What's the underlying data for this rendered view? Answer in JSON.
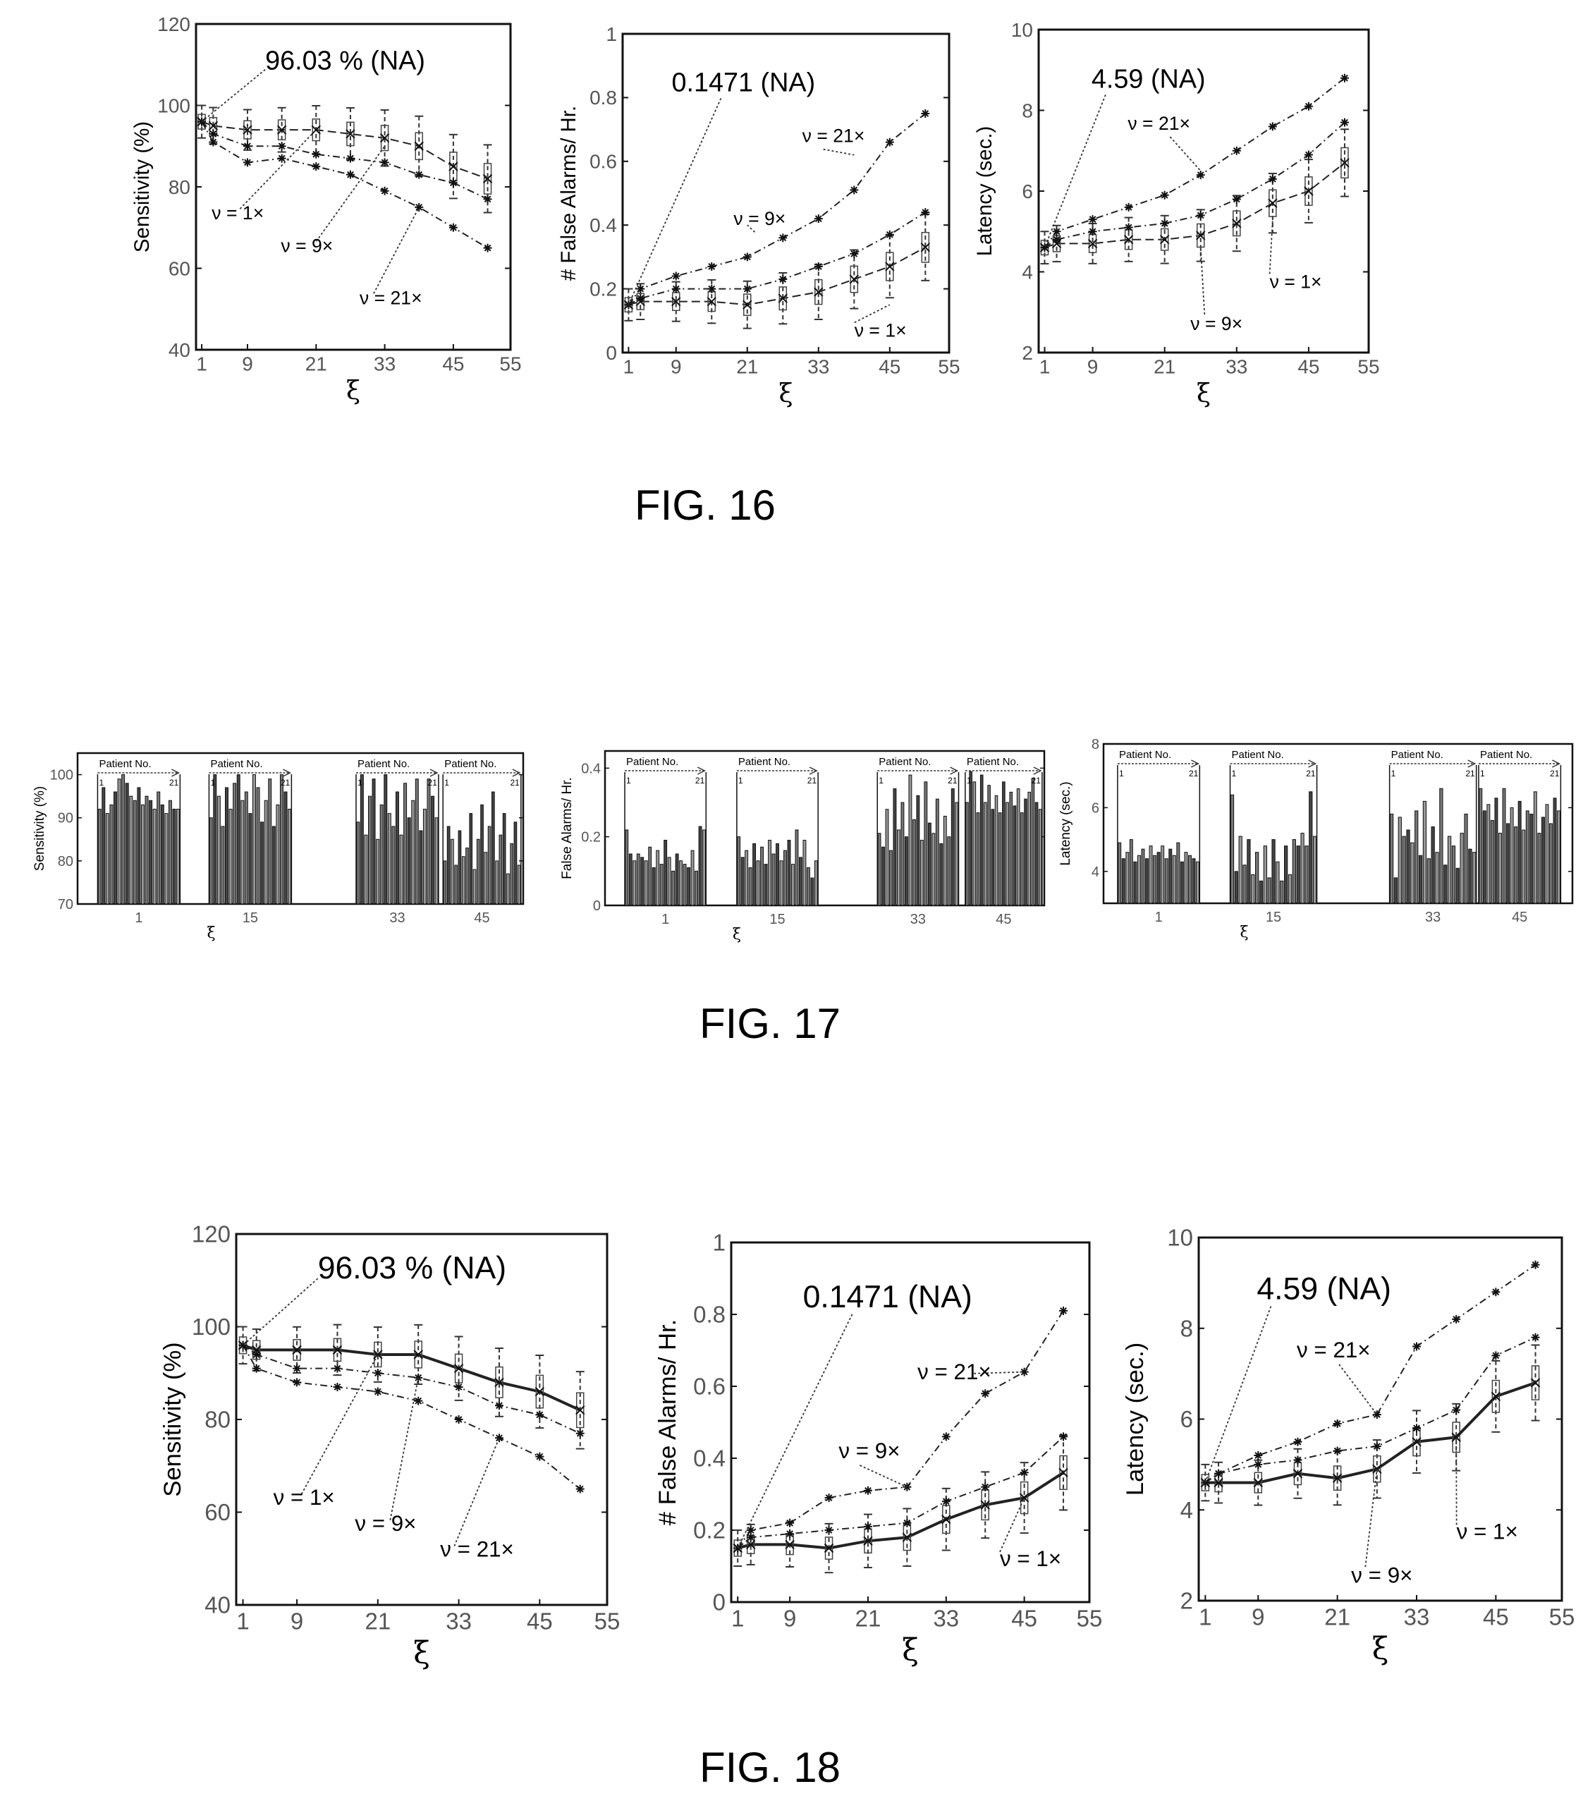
{
  "figures": [
    {
      "label": "FIG. 16"
    },
    {
      "label": "FIG. 17"
    },
    {
      "label": "FIG. 18"
    }
  ],
  "chart_data": [
    {
      "id": "fig16-sensitivity",
      "figure": "FIG. 16",
      "type": "line",
      "title": "",
      "xlabel": "ξ",
      "ylabel": "Sensitivity (%)",
      "xlim": [
        0,
        55
      ],
      "ylim": [
        40,
        120
      ],
      "xticks": [
        1,
        9,
        21,
        33,
        45,
        55
      ],
      "yticks": [
        40,
        60,
        80,
        100,
        120
      ],
      "x": [
        1,
        3,
        9,
        15,
        21,
        27,
        33,
        39,
        45,
        51
      ],
      "series": [
        {
          "values": [
            96,
            95,
            94,
            94,
            94,
            93,
            92,
            90,
            85,
            82
          ]
        },
        {
          "values": [
            96,
            93,
            90,
            90,
            88,
            87,
            86,
            83,
            81,
            77
          ]
        },
        {
          "values": [
            96,
            91,
            86,
            87,
            85,
            83,
            79,
            75,
            70,
            65
          ]
        }
      ],
      "annotations": [
        {
          "text": "96.03 % (NA)",
          "x": 1,
          "y": 96
        },
        {
          "text": "ν = 1×",
          "x": 21,
          "y": 94
        },
        {
          "text": "ν = 9×",
          "x": 33,
          "y": 90
        },
        {
          "text": "ν = 21×",
          "x": 39,
          "y": 75
        }
      ]
    },
    {
      "id": "fig16-false-alarms",
      "figure": "FIG. 16",
      "type": "line",
      "title": "",
      "xlabel": "ξ",
      "ylabel": "# False Alarms/ Hr.",
      "xlim": [
        0,
        55
      ],
      "ylim": [
        0,
        1
      ],
      "xticks": [
        1,
        9,
        21,
        33,
        45,
        55
      ],
      "yticks": [
        0,
        0.2,
        0.4,
        0.6,
        0.8,
        1
      ],
      "x": [
        1,
        3,
        9,
        15,
        21,
        27,
        33,
        39,
        45,
        51
      ],
      "series": [
        {
          "values": [
            0.15,
            0.16,
            0.16,
            0.16,
            0.15,
            0.17,
            0.19,
            0.23,
            0.27,
            0.33
          ]
        },
        {
          "values": [
            0.15,
            0.17,
            0.2,
            0.2,
            0.2,
            0.23,
            0.27,
            0.31,
            0.37,
            0.44
          ]
        },
        {
          "values": [
            0.15,
            0.2,
            0.24,
            0.27,
            0.3,
            0.36,
            0.42,
            0.51,
            0.66,
            0.75
          ]
        }
      ],
      "annotations": [
        {
          "text": "0.1471 (NA)",
          "x": 1,
          "y": 0.15
        },
        {
          "text": "ν = 21×",
          "x": 39,
          "y": 0.62
        },
        {
          "text": "ν = 9×",
          "x": 21,
          "y": 0.4
        },
        {
          "text": "ν = 1×",
          "x": 45,
          "y": 0.15
        }
      ]
    },
    {
      "id": "fig16-latency",
      "figure": "FIG. 16",
      "type": "line",
      "title": "",
      "xlabel": "ξ",
      "ylabel": "Latency (sec.)",
      "xlim": [
        0,
        55
      ],
      "ylim": [
        2,
        10
      ],
      "xticks": [
        1,
        9,
        21,
        33,
        45,
        55
      ],
      "yticks": [
        2,
        4,
        6,
        8,
        10
      ],
      "x": [
        1,
        3,
        9,
        15,
        21,
        27,
        33,
        39,
        45,
        51
      ],
      "series": [
        {
          "values": [
            4.6,
            4.7,
            4.7,
            4.8,
            4.8,
            4.9,
            5.2,
            5.7,
            6,
            6.7
          ]
        },
        {
          "values": [
            4.6,
            4.8,
            5,
            5.1,
            5.2,
            5.4,
            5.8,
            6.3,
            6.9,
            7.7
          ]
        },
        {
          "values": [
            4.6,
            5,
            5.3,
            5.6,
            5.9,
            6.4,
            7,
            7.6,
            8.1,
            8.8
          ]
        }
      ],
      "annotations": [
        {
          "text": "4.59 (NA)",
          "x": 1,
          "y": 4.6
        },
        {
          "text": "ν = 21×",
          "x": 27,
          "y": 6.5
        },
        {
          "text": "ν = 1×",
          "x": 39,
          "y": 5.3
        },
        {
          "text": "ν = 9×",
          "x": 27,
          "y": 4.6
        }
      ]
    },
    {
      "id": "fig17-sensitivity",
      "figure": "FIG. 17",
      "type": "bar",
      "title": "",
      "xlabel": "ξ",
      "ylabel": "Sensitivity (%)",
      "ylim": [
        70,
        105
      ],
      "yticks": [
        70,
        80,
        90,
        100
      ],
      "categories": [
        "1",
        "15",
        "33",
        "45"
      ],
      "group_header": "Patient No.",
      "patient_range": [
        "1",
        "21"
      ],
      "groups": [
        {
          "xi": "1",
          "values": [
            92,
            97,
            91,
            93,
            96,
            99,
            100,
            98,
            95,
            94,
            97,
            93,
            95,
            94,
            92,
            96,
            93,
            91,
            94,
            92,
            92
          ]
        },
        {
          "xi": "15",
          "values": [
            90,
            100,
            95,
            88,
            97,
            92,
            98,
            100,
            94,
            96,
            91,
            100,
            97,
            89,
            94,
            99,
            88,
            93,
            100,
            96,
            92
          ]
        },
        {
          "xi": "33",
          "values": [
            89,
            100,
            86,
            95,
            99,
            85,
            93,
            100,
            91,
            88,
            96,
            86,
            98,
            90,
            94,
            99,
            87,
            92,
            99,
            95,
            90
          ]
        },
        {
          "xi": "45",
          "values": [
            80,
            88,
            85,
            79,
            87,
            81,
            83,
            91,
            78,
            85,
            93,
            82,
            88,
            96,
            80,
            86,
            91,
            77,
            84,
            89,
            79
          ]
        }
      ]
    },
    {
      "id": "fig17-false-alarms",
      "figure": "FIG. 17",
      "type": "bar",
      "title": "",
      "xlabel": "ξ",
      "ylabel": "False Alarms/ Hr.",
      "ylim": [
        0,
        0.45
      ],
      "yticks": [
        0,
        0.2,
        0.4
      ],
      "categories": [
        "1",
        "15",
        "33",
        "45"
      ],
      "group_header": "Patient No.",
      "patient_range": [
        "1",
        "21"
      ],
      "groups": [
        {
          "xi": "1",
          "values": [
            0.22,
            0.15,
            0.13,
            0.15,
            0.14,
            0.13,
            0.17,
            0.11,
            0.16,
            0.12,
            0.19,
            0.14,
            0.1,
            0.15,
            0.13,
            0.12,
            0.11,
            0.16,
            0.1,
            0.23,
            0.22
          ]
        },
        {
          "xi": "15",
          "values": [
            0.2,
            0.14,
            0.16,
            0.11,
            0.18,
            0.13,
            0.17,
            0.12,
            0.19,
            0.15,
            0.18,
            0.13,
            0.16,
            0.19,
            0.12,
            0.22,
            0.14,
            0.19,
            0.11,
            0.08,
            0.13
          ]
        },
        {
          "xi": "33",
          "values": [
            0.21,
            0.17,
            0.28,
            0.16,
            0.34,
            0.22,
            0.3,
            0.2,
            0.38,
            0.25,
            0.32,
            0.19,
            0.36,
            0.24,
            0.21,
            0.31,
            0.18,
            0.26,
            0.2,
            0.34,
            0.3
          ]
        },
        {
          "xi": "45",
          "values": [
            0.3,
            0.39,
            0.36,
            0.27,
            0.38,
            0.3,
            0.35,
            0.28,
            0.32,
            0.27,
            0.36,
            0.3,
            0.33,
            0.29,
            0.34,
            0.27,
            0.31,
            0.33,
            0.37,
            0.3,
            0.28
          ]
        }
      ]
    },
    {
      "id": "fig17-latency",
      "figure": "FIG. 17",
      "type": "bar",
      "title": "",
      "xlabel": "ξ",
      "ylabel": "Latency (sec.)",
      "ylim": [
        3,
        8
      ],
      "yticks": [
        4,
        6,
        8
      ],
      "categories": [
        "1",
        "15",
        "33",
        "45"
      ],
      "group_header": "Patient No.",
      "patient_range": [
        "1",
        "21"
      ],
      "groups": [
        {
          "xi": "1",
          "values": [
            4.9,
            4.4,
            4.6,
            5,
            4.3,
            4.5,
            4.7,
            4.4,
            4.8,
            4.5,
            4.6,
            4.8,
            4.4,
            4.7,
            4.5,
            4.9,
            4.3,
            4.6,
            4.5,
            4.4,
            4.3
          ]
        },
        {
          "xi": "15",
          "values": [
            6.4,
            4,
            5.1,
            4.2,
            5,
            3.9,
            4.6,
            3.7,
            4.8,
            3.8,
            5,
            4.3,
            3.7,
            4.8,
            3.9,
            5,
            4.8,
            5.2,
            4.8,
            6.5,
            5.1
          ]
        },
        {
          "xi": "33",
          "values": [
            5.8,
            3.8,
            5.7,
            5.1,
            5.3,
            4.9,
            5.9,
            4.5,
            6.2,
            4.4,
            5.4,
            4.6,
            6.6,
            4.2,
            5.1,
            4.8,
            4.1,
            5.2,
            5.8,
            4.7,
            4.6
          ]
        },
        {
          "xi": "45",
          "values": [
            6.6,
            5.9,
            6.1,
            5.6,
            6.3,
            5.2,
            6.6,
            5.5,
            6,
            5.4,
            6.2,
            5.3,
            5.9,
            5.8,
            6.5,
            5.2,
            5.7,
            6.1,
            5.5,
            6.3,
            5.9
          ]
        }
      ]
    },
    {
      "id": "fig18-sensitivity",
      "figure": "FIG. 18",
      "type": "line",
      "title": "",
      "xlabel": "ξ",
      "ylabel": "Sensitivity (%)",
      "xlim": [
        0,
        55
      ],
      "ylim": [
        40,
        120
      ],
      "xticks": [
        1,
        9,
        21,
        33,
        45,
        55
      ],
      "yticks": [
        40,
        60,
        80,
        100,
        120
      ],
      "x": [
        1,
        3,
        9,
        15,
        21,
        27,
        33,
        39,
        45,
        51
      ],
      "series": [
        {
          "values": [
            96,
            95,
            95,
            95,
            94,
            94,
            91,
            88,
            86,
            82
          ],
          "style": "solid"
        },
        {
          "values": [
            96,
            94,
            91,
            91,
            90,
            89,
            87,
            83,
            81,
            77
          ],
          "style": "dash-dot"
        },
        {
          "values": [
            96,
            91,
            88,
            87,
            86,
            84,
            80,
            76,
            72,
            65
          ],
          "style": "dash-dot"
        }
      ],
      "annotations": [
        {
          "text": "96.03 % (NA)",
          "x": 1,
          "y": 96
        },
        {
          "text": "ν = 1×",
          "x": 21,
          "y": 94
        },
        {
          "text": "ν = 9×",
          "x": 27,
          "y": 89
        },
        {
          "text": "ν = 21×",
          "x": 39,
          "y": 76
        }
      ]
    },
    {
      "id": "fig18-false-alarms",
      "figure": "FIG. 18",
      "type": "line",
      "title": "",
      "xlabel": "ξ",
      "ylabel": "# False Alarms/ Hr.",
      "xlim": [
        0,
        55
      ],
      "ylim": [
        0,
        1
      ],
      "xticks": [
        1,
        9,
        21,
        33,
        45,
        55
      ],
      "yticks": [
        0,
        0.2,
        0.4,
        0.6,
        0.8,
        1
      ],
      "x": [
        1,
        3,
        9,
        15,
        21,
        27,
        33,
        39,
        45,
        51
      ],
      "series": [
        {
          "values": [
            0.15,
            0.16,
            0.16,
            0.15,
            0.17,
            0.18,
            0.23,
            0.27,
            0.29,
            0.36
          ],
          "style": "solid"
        },
        {
          "values": [
            0.15,
            0.18,
            0.19,
            0.2,
            0.21,
            0.22,
            0.28,
            0.32,
            0.36,
            0.46
          ],
          "style": "dash-dot"
        },
        {
          "values": [
            0.15,
            0.2,
            0.22,
            0.29,
            0.31,
            0.32,
            0.46,
            0.58,
            0.64,
            0.81
          ],
          "style": "dash-dot"
        }
      ],
      "annotations": [
        {
          "text": "0.1471 (NA)",
          "x": 1,
          "y": 0.15
        },
        {
          "text": "ν = 21×",
          "x": 45,
          "y": 0.64
        },
        {
          "text": "ν = 9×",
          "x": 27,
          "y": 0.32
        },
        {
          "text": "ν = 1×",
          "x": 45,
          "y": 0.29
        }
      ]
    },
    {
      "id": "fig18-latency",
      "figure": "FIG. 18",
      "type": "line",
      "title": "",
      "xlabel": "ξ",
      "ylabel": "Latency (sec.)",
      "xlim": [
        0,
        55
      ],
      "ylim": [
        2,
        10
      ],
      "xticks": [
        1,
        9,
        21,
        33,
        45,
        55
      ],
      "yticks": [
        2,
        4,
        6,
        8,
        10
      ],
      "x": [
        1,
        3,
        9,
        15,
        21,
        27,
        33,
        39,
        45,
        51
      ],
      "series": [
        {
          "values": [
            4.6,
            4.6,
            4.6,
            4.8,
            4.7,
            4.9,
            5.5,
            5.6,
            6.5,
            6.8
          ],
          "style": "solid"
        },
        {
          "values": [
            4.6,
            4.8,
            5,
            5.1,
            5.3,
            5.4,
            5.8,
            6.2,
            7.4,
            7.8
          ],
          "style": "dash-dot"
        },
        {
          "values": [
            4.6,
            4.8,
            5.2,
            5.5,
            5.9,
            6.1,
            7.6,
            8.2,
            8.8,
            9.4
          ],
          "style": "dash-dot"
        }
      ],
      "annotations": [
        {
          "text": "4.59 (NA)",
          "x": 1,
          "y": 4.6
        },
        {
          "text": "ν = 21×",
          "x": 27,
          "y": 6.1
        },
        {
          "text": "ν = 1×",
          "x": 39,
          "y": 5.6
        },
        {
          "text": "ν = 9×",
          "x": 27,
          "y": 4.9
        }
      ]
    }
  ]
}
